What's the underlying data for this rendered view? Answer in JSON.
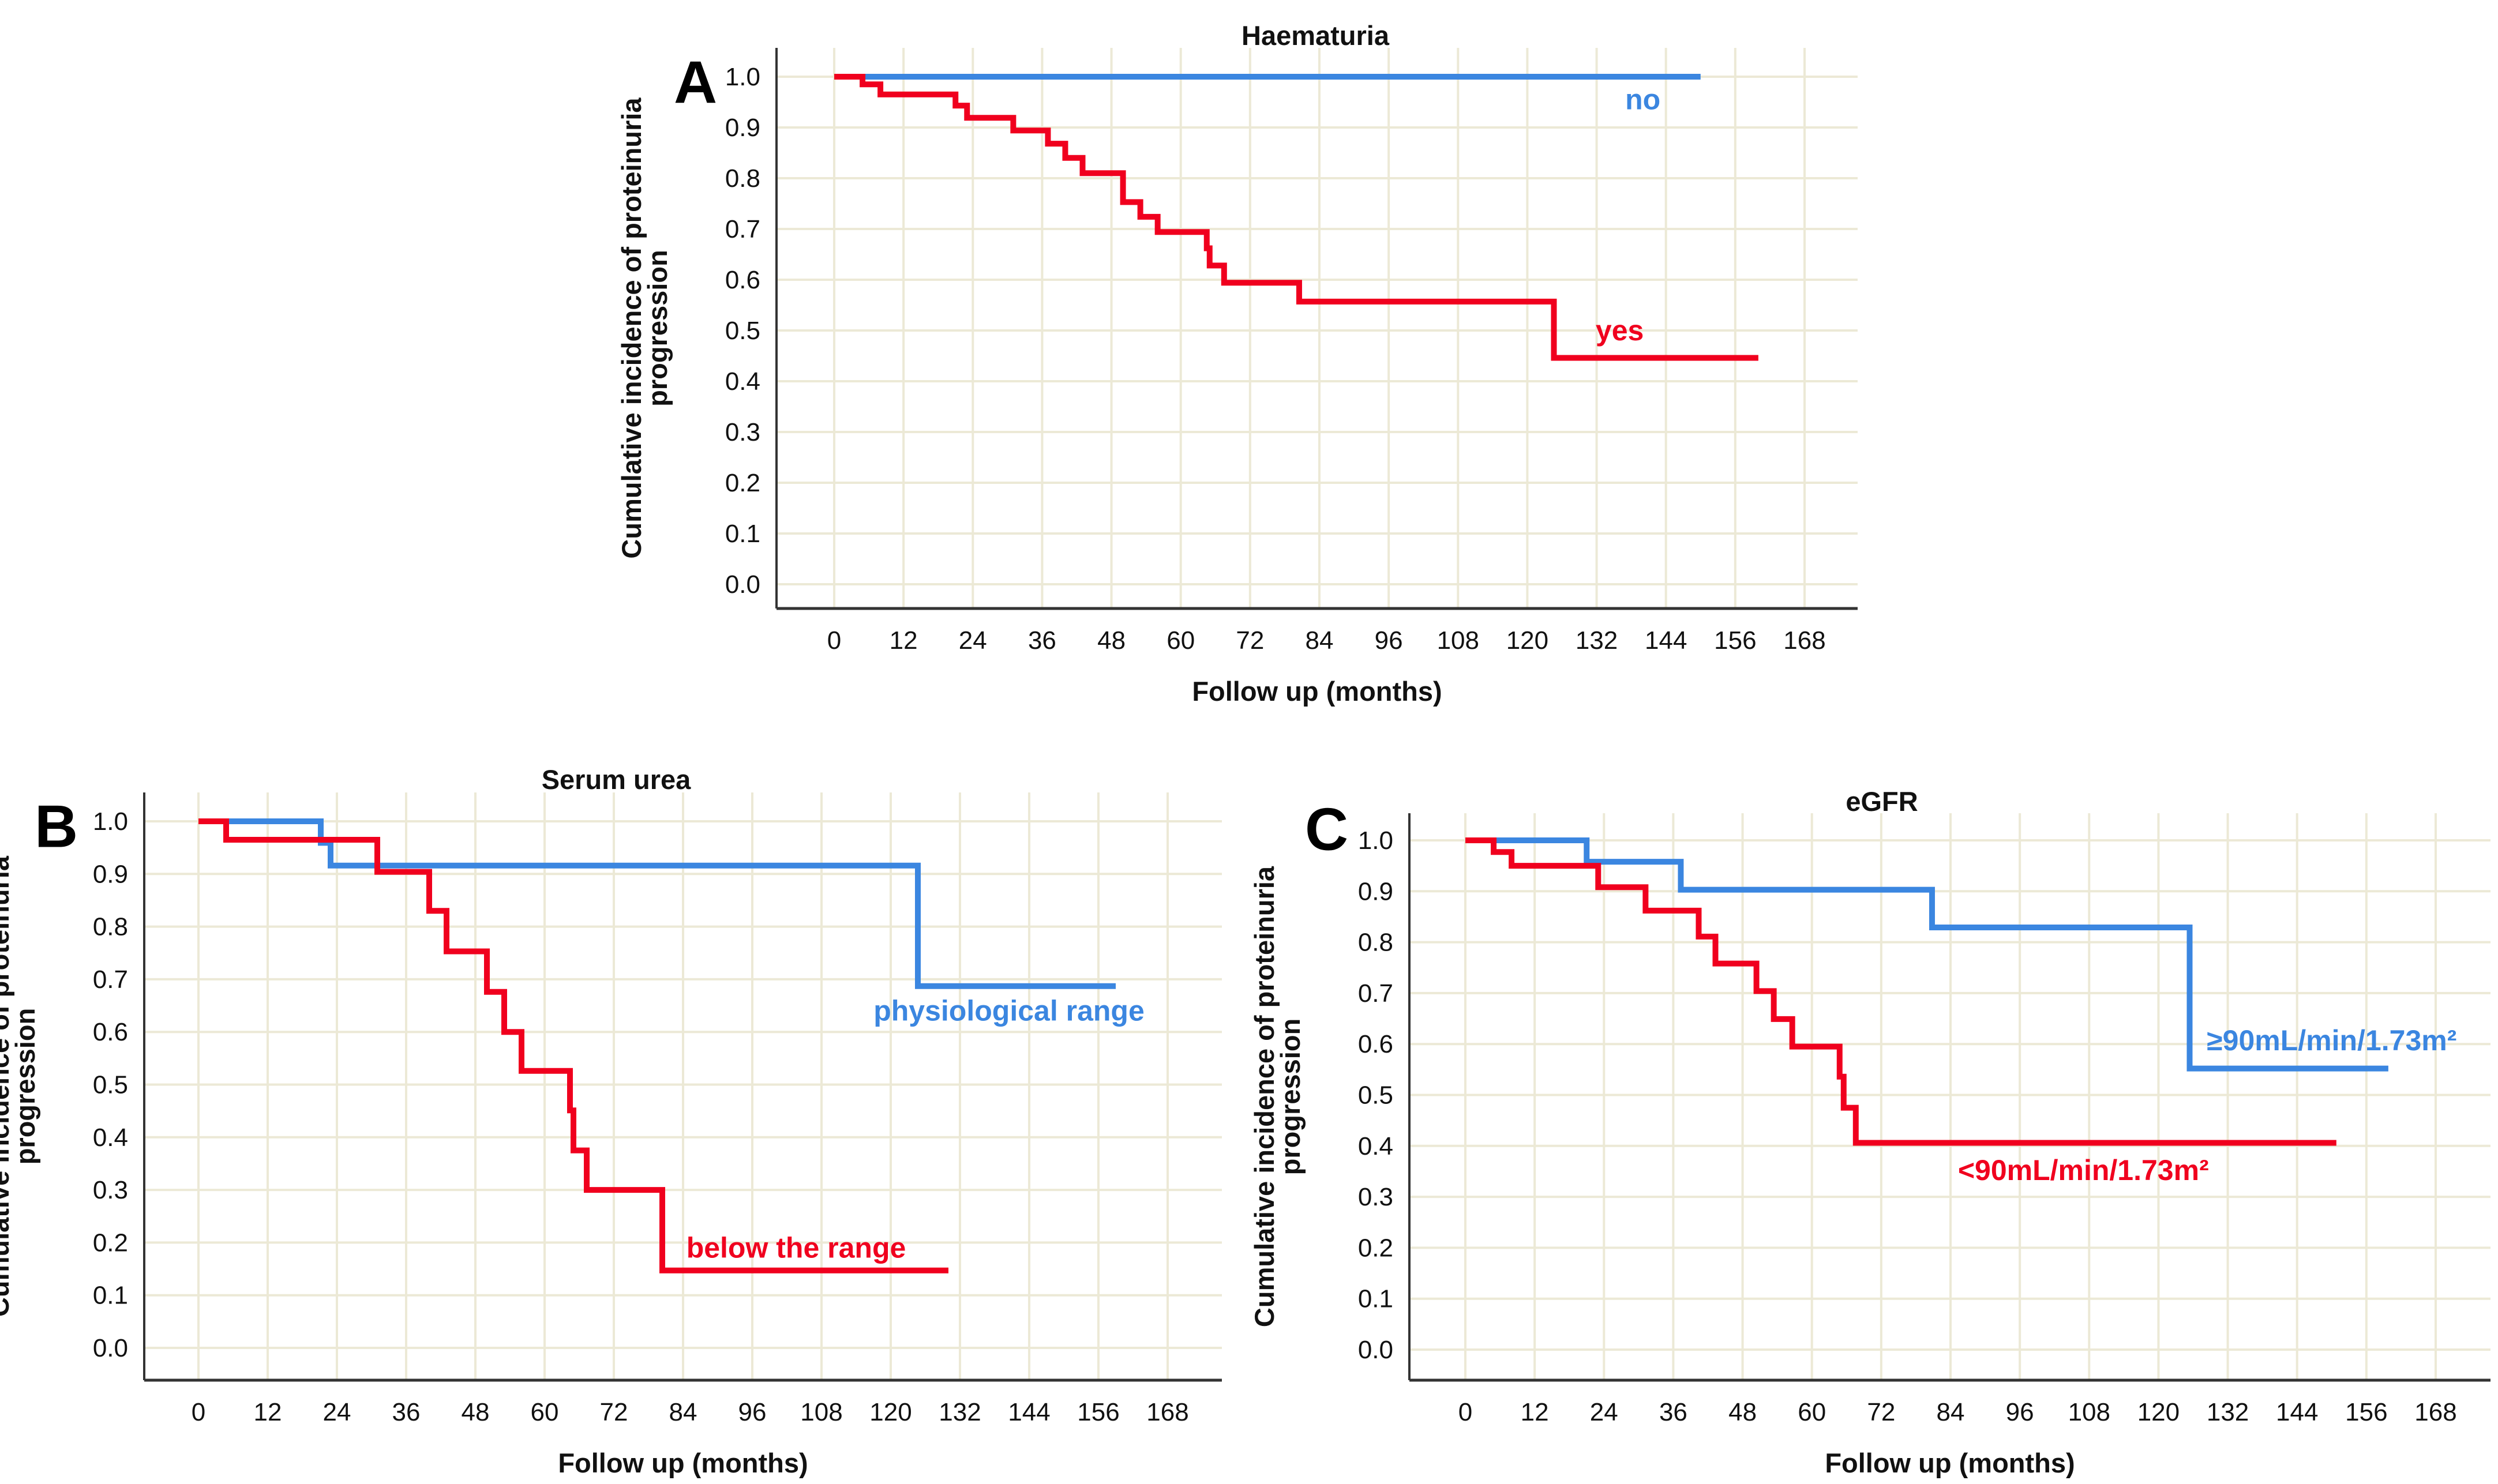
{
  "colors": {
    "red": "#f0001e",
    "blue": "#3b86e0",
    "grid": "#ece9d6",
    "axis": "#333333"
  },
  "chart_data": [
    {
      "panel": "A",
      "type": "line",
      "step": true,
      "title": "Haematuria",
      "xlabel": "Follow up (months)",
      "ylabel": [
        "Cumulative incidence of proteinuria",
        "progression"
      ],
      "xticks": [
        "0",
        "12",
        "24",
        "36",
        "48",
        "60",
        "72",
        "84",
        "96",
        "108",
        "120",
        "132",
        "144",
        "156",
        "168"
      ],
      "yticks": [
        "0.0",
        "0.1",
        "0.2",
        "0.3",
        "0.4",
        "0.5",
        "0.6",
        "0.7",
        "0.8",
        "0.9",
        "1.0"
      ],
      "xlim": [
        0,
        168
      ],
      "ylim": [
        0,
        1
      ],
      "grid": true,
      "series": [
        {
          "name": "no",
          "color": "blue",
          "x": [
            0,
            150
          ],
          "y": [
            1.0,
            1.0
          ]
        },
        {
          "name": "yes",
          "color": "red",
          "x": [
            0,
            4.9,
            8,
            21,
            23,
            31,
            37,
            40,
            43,
            50,
            53,
            56,
            64.5,
            65,
            67.5,
            80.5,
            124.6,
            160
          ],
          "y": [
            1.0,
            0.985,
            0.965,
            0.943,
            0.919,
            0.894,
            0.868,
            0.84,
            0.81,
            0.753,
            0.724,
            0.694,
            0.662,
            0.628,
            0.594,
            0.557,
            0.446,
            0.446
          ]
        }
      ]
    },
    {
      "panel": "B",
      "type": "line",
      "step": true,
      "title": "Serum urea",
      "xlabel": "Follow up (months)",
      "ylabel": [
        "Cumulative incidence of proteinuria",
        "progression"
      ],
      "xticks": [
        "0",
        "12",
        "24",
        "36",
        "48",
        "60",
        "72",
        "84",
        "96",
        "108",
        "120",
        "132",
        "144",
        "156",
        "168"
      ],
      "yticks": [
        "0.0",
        "0.1",
        "0.2",
        "0.3",
        "0.4",
        "0.5",
        "0.6",
        "0.7",
        "0.8",
        "0.9",
        "1.0"
      ],
      "xlim": [
        0,
        168
      ],
      "ylim": [
        0,
        1
      ],
      "grid": true,
      "series": [
        {
          "name": "physiological range",
          "color": "blue",
          "x": [
            0,
            21.2,
            22.9,
            124.7,
            159
          ],
          "y": [
            1.0,
            0.959,
            0.916,
            0.687,
            0.687
          ]
        },
        {
          "name": "below the range",
          "color": "red",
          "x": [
            0,
            4.8,
            31,
            40,
            43,
            50,
            53,
            56,
            64.4,
            65,
            67.3,
            80.4,
            130
          ],
          "y": [
            1.0,
            0.965,
            0.904,
            0.83,
            0.753,
            0.676,
            0.6,
            0.526,
            0.451,
            0.375,
            0.3,
            0.147,
            0.147
          ]
        }
      ]
    },
    {
      "panel": "C",
      "type": "line",
      "step": true,
      "title": "eGFR",
      "xlabel": "Follow up (months)",
      "ylabel": [
        "Cumulative incidence of proteinuria",
        "progression"
      ],
      "xticks": [
        "0",
        "12",
        "24",
        "36",
        "48",
        "60",
        "72",
        "84",
        "96",
        "108",
        "120",
        "132",
        "144",
        "156",
        "168"
      ],
      "yticks": [
        "0.0",
        "0.1",
        "0.2",
        "0.3",
        "0.4",
        "0.5",
        "0.6",
        "0.7",
        "0.8",
        "0.9",
        "1.0"
      ],
      "xlim": [
        0,
        168
      ],
      "ylim": [
        0,
        1
      ],
      "grid": true,
      "series": [
        {
          "name": "≥90mL/min/1.73m²",
          "color": "blue",
          "x": [
            0,
            21,
            37.3,
            80.8,
            125.4,
            159.8
          ],
          "y": [
            1.0,
            0.958,
            0.903,
            0.829,
            0.552,
            0.552
          ]
        },
        {
          "name": "<90mL/min/1.73m²",
          "color": "red",
          "x": [
            0,
            4.9,
            8,
            23,
            31.2,
            40.4,
            43.3,
            50.4,
            53.4,
            56.6,
            64.8,
            65.5,
            67.6,
            150.8
          ],
          "y": [
            1.0,
            0.977,
            0.95,
            0.908,
            0.862,
            0.811,
            0.758,
            0.704,
            0.649,
            0.595,
            0.536,
            0.475,
            0.406,
            0.406
          ]
        }
      ]
    }
  ]
}
